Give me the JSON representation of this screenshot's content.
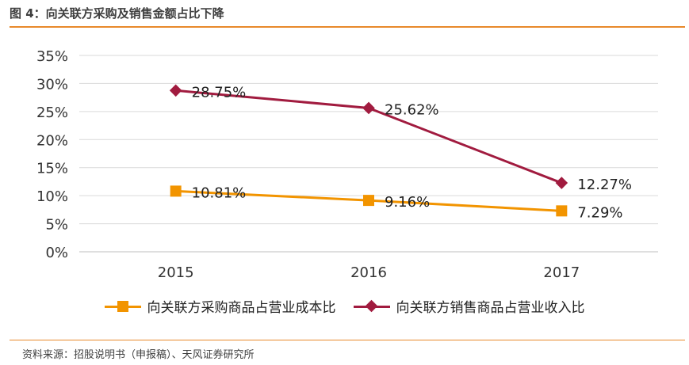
{
  "figure": {
    "title": "图 4：向关联方采购及销售金额占比下降",
    "source": "资料来源：招股说明书（申报稿）、天风证券研究所"
  },
  "colors": {
    "accent": "#e8892b",
    "series1": "#f29400",
    "series2": "#a11b3f",
    "grid": "#d9d9d9"
  },
  "chart_data": {
    "type": "line",
    "title": "图 4：向关联方采购及销售金额占比下降",
    "categories": [
      "2015",
      "2016",
      "2017"
    ],
    "ylim": [
      0,
      35
    ],
    "yticks": [
      "0%",
      "5%",
      "10%",
      "15%",
      "20%",
      "25%",
      "30%",
      "35%"
    ],
    "ytick_values": [
      0,
      5,
      10,
      15,
      20,
      25,
      30,
      35
    ],
    "grid": true,
    "legend_position": "bottom",
    "series": [
      {
        "name": "向关联方采购商品占营业成本比",
        "values": [
          10.81,
          9.16,
          7.29
        ],
        "labels": [
          "10.81%",
          "9.16%",
          "7.29%"
        ],
        "marker": "square"
      },
      {
        "name": "向关联方销售商品占营业收入比",
        "values": [
          28.75,
          25.62,
          12.27
        ],
        "labels": [
          "28.75%",
          "25.62%",
          "12.27%"
        ],
        "marker": "diamond"
      }
    ]
  }
}
